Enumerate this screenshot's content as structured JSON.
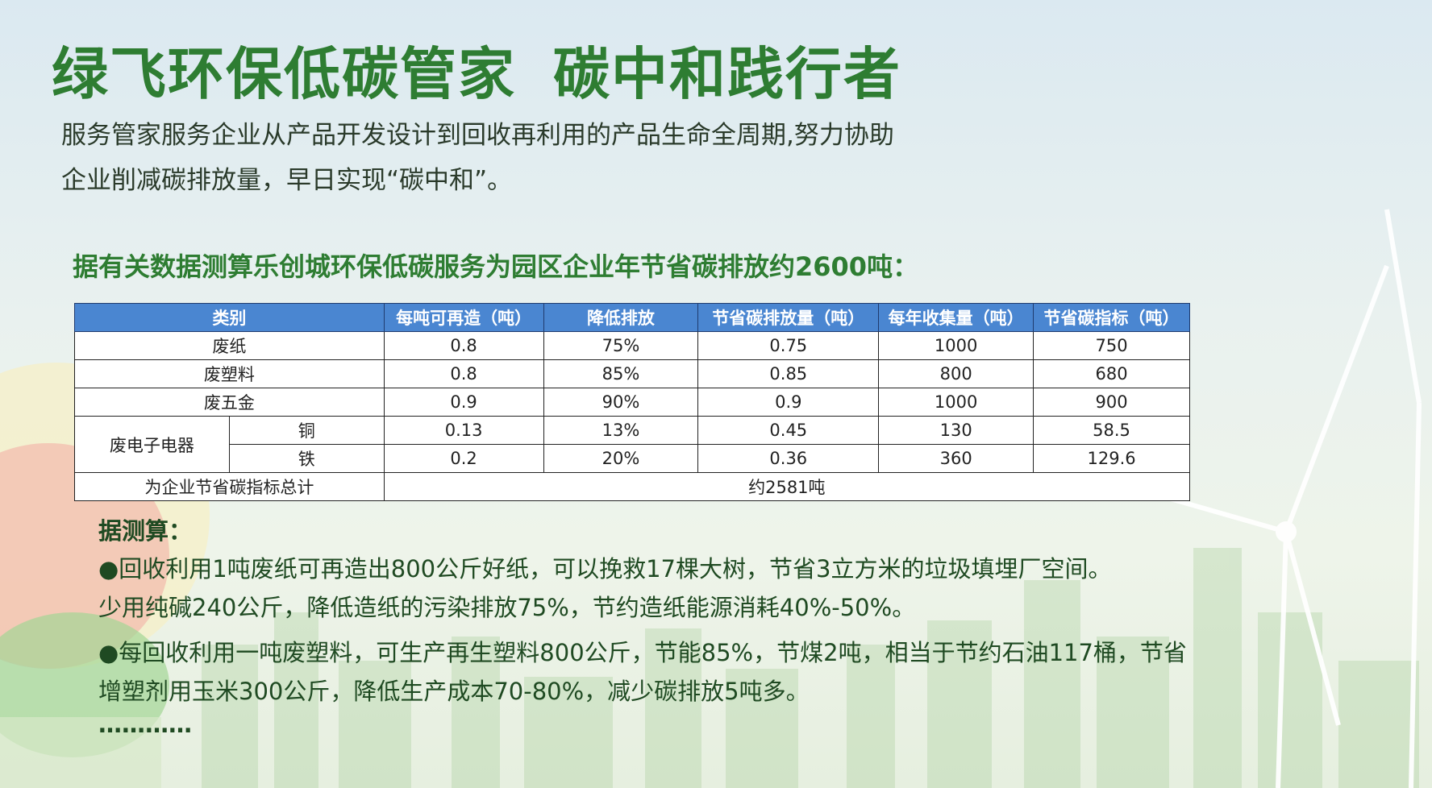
{
  "title": {
    "part1": "绿飞环保低碳管家",
    "part2": "碳中和践行者"
  },
  "intro": {
    "line1": "服务管家服务企业从产品开发设计到回收再利用的产品生命全周期,努力协助",
    "line2": "企业削减碳排放量，早日实现“碳中和”。"
  },
  "subhead": "据有关数据测算乐创城环保低碳服务为园区企业年节省碳排放约2600吨：",
  "table": {
    "headers": [
      "类别",
      "每吨可再造（吨）",
      "降低排放",
      "节省碳排放量（吨）",
      "每年收集量（吨）",
      "节省碳指标（吨）"
    ],
    "rows": [
      {
        "category": "废纸",
        "per_ton": "0.8",
        "reduction": "75%",
        "saved": "0.75",
        "collected": "1000",
        "index": "750"
      },
      {
        "category": "废塑料",
        "per_ton": "0.8",
        "reduction": "85%",
        "saved": "0.85",
        "collected": "800",
        "index": "680"
      },
      {
        "category": "废五金",
        "per_ton": "0.9",
        "reduction": "90%",
        "saved": "0.9",
        "collected": "1000",
        "index": "900"
      }
    ],
    "electronics": {
      "category": "废电子电器",
      "rows": [
        {
          "sub": "铜",
          "per_ton": "0.13",
          "reduction": "13%",
          "saved": "0.45",
          "collected": "130",
          "index": "58.5"
        },
        {
          "sub": "铁",
          "per_ton": "0.2",
          "reduction": "20%",
          "saved": "0.36",
          "collected": "360",
          "index": "129.6"
        }
      ]
    },
    "total_label": "为企业节省碳指标总计",
    "total_value": "约2581吨"
  },
  "notes": {
    "heading": "据测算：",
    "p1_line1": "●回收利用1吨废纸可再造出800公斤好纸，可以挽救17棵大树，节省3立方米的垃圾填埋厂空间。",
    "p1_line2": "少用纯碱240公斤，降低造纸的污染排放75%，节约造纸能源消耗40%-50%。",
    "p2_line1": "●每回收利用一吨废塑料，可生产再生塑料800公斤，节能85%，节煤2吨，相当于节约石油117桶，节省",
    "p2_line2": "增塑剂用玉米300公斤，降低生产成本70-80%，减少碳排放5吨多。",
    "ellipsis": "…………"
  },
  "colors": {
    "title_green": "#2e7d32",
    "header_blue": "#4a86d1",
    "text_dark": "#2a3a2a"
  }
}
